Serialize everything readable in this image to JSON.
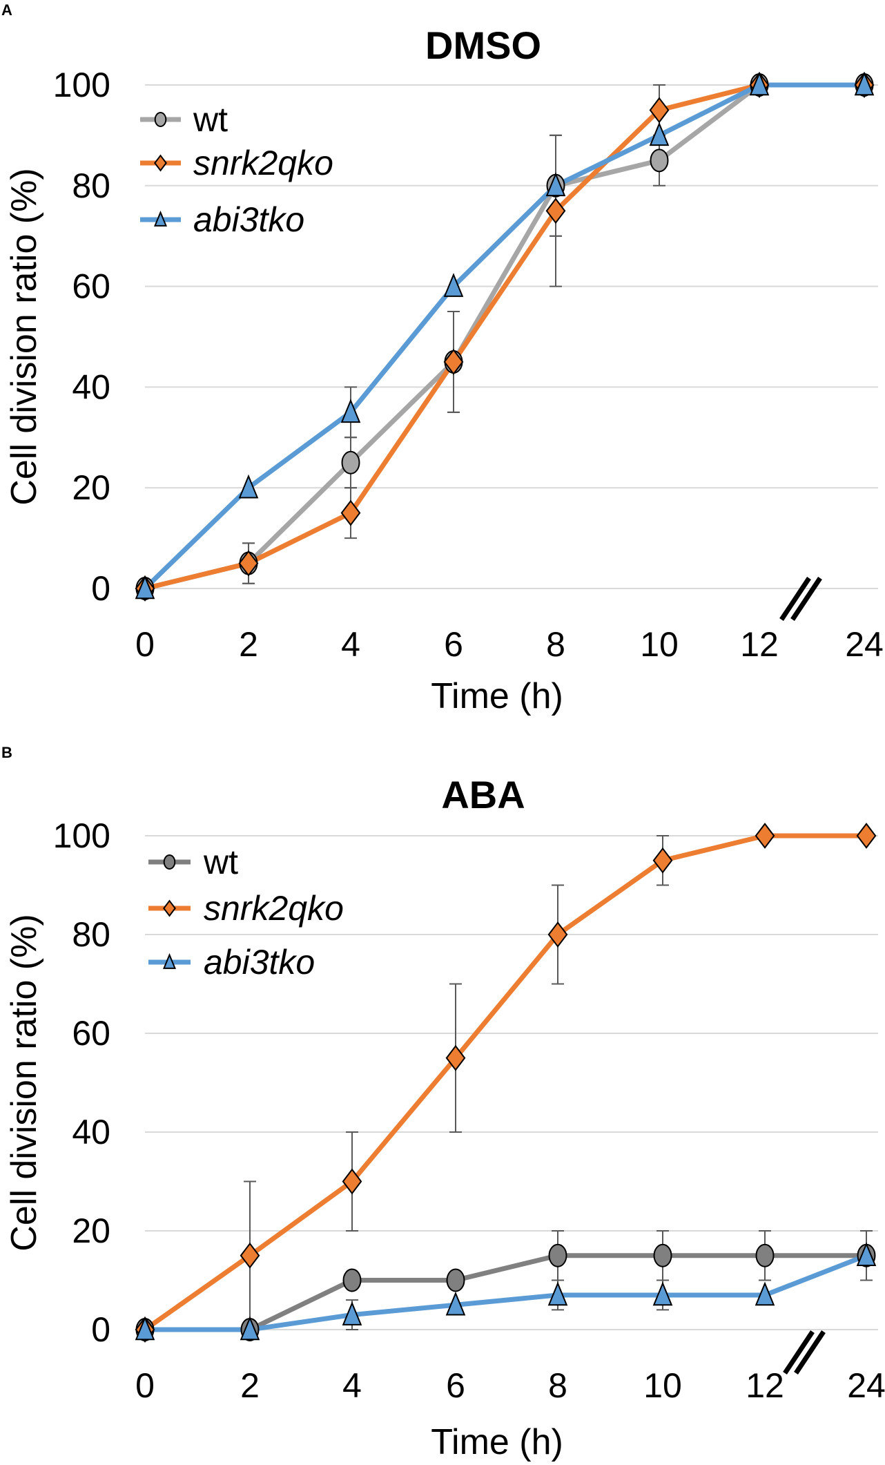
{
  "chart_data": [
    {
      "panel": "A",
      "type": "line",
      "title": "DMSO",
      "xlabel": "Time (h)",
      "ylabel": "Cell division ratio (%)",
      "categories": [
        "0",
        "2",
        "4",
        "6",
        "8",
        "10",
        "12",
        "24"
      ],
      "axis_break": "between 12 and 24",
      "yticks": [
        "0",
        "20",
        "40",
        "60",
        "80",
        "100"
      ],
      "ylim": [
        0,
        100
      ],
      "grid": true,
      "legend_position": "top-left",
      "series": [
        {
          "name": "wt",
          "italic": false,
          "color": "#a6a6a6",
          "marker": "circle",
          "values": [
            0,
            5,
            25,
            45,
            80,
            85,
            100,
            100
          ],
          "errors": [
            0,
            4,
            5,
            10,
            10,
            5,
            0,
            0
          ]
        },
        {
          "name": "snrk2qko",
          "italic": true,
          "color": "#ed7d31",
          "marker": "diamond",
          "values": [
            0,
            5,
            15,
            45,
            75,
            95,
            100,
            100
          ],
          "errors": [
            0,
            4,
            5,
            10,
            15,
            5,
            0,
            0
          ]
        },
        {
          "name": "abi3tko",
          "italic": true,
          "color": "#5b9bd5",
          "marker": "triangle",
          "values": [
            0,
            20,
            35,
            60,
            80,
            90,
            100,
            100
          ],
          "errors": [
            0,
            0,
            5,
            0,
            10,
            0,
            0,
            0
          ]
        }
      ]
    },
    {
      "panel": "B",
      "type": "line",
      "title": "ABA",
      "xlabel": "Time (h)",
      "ylabel": "Cell division ratio (%)",
      "categories": [
        "0",
        "2",
        "4",
        "6",
        "8",
        "10",
        "12",
        "24"
      ],
      "axis_break": "between 12 and 24",
      "yticks": [
        "0",
        "20",
        "40",
        "60",
        "80",
        "100"
      ],
      "ylim": [
        0,
        100
      ],
      "grid": true,
      "legend_position": "top-left",
      "series": [
        {
          "name": "wt",
          "italic": false,
          "color": "#808080",
          "marker": "circle",
          "values": [
            0,
            0,
            10,
            10,
            15,
            15,
            15,
            15
          ],
          "errors": [
            0,
            0,
            0,
            0,
            5,
            5,
            5,
            5
          ]
        },
        {
          "name": "snrk2qko",
          "italic": true,
          "color": "#ed7d31",
          "marker": "diamond",
          "values": [
            0,
            15,
            30,
            55,
            80,
            95,
            100,
            100
          ],
          "errors": [
            0,
            15,
            10,
            15,
            10,
            5,
            0,
            0
          ]
        },
        {
          "name": "abi3tko",
          "italic": true,
          "color": "#5b9bd5",
          "marker": "triangle",
          "values": [
            0,
            0,
            3,
            5,
            7,
            7,
            7,
            15
          ],
          "errors": [
            0,
            0,
            3,
            0,
            3,
            3,
            0,
            5
          ]
        }
      ]
    }
  ]
}
